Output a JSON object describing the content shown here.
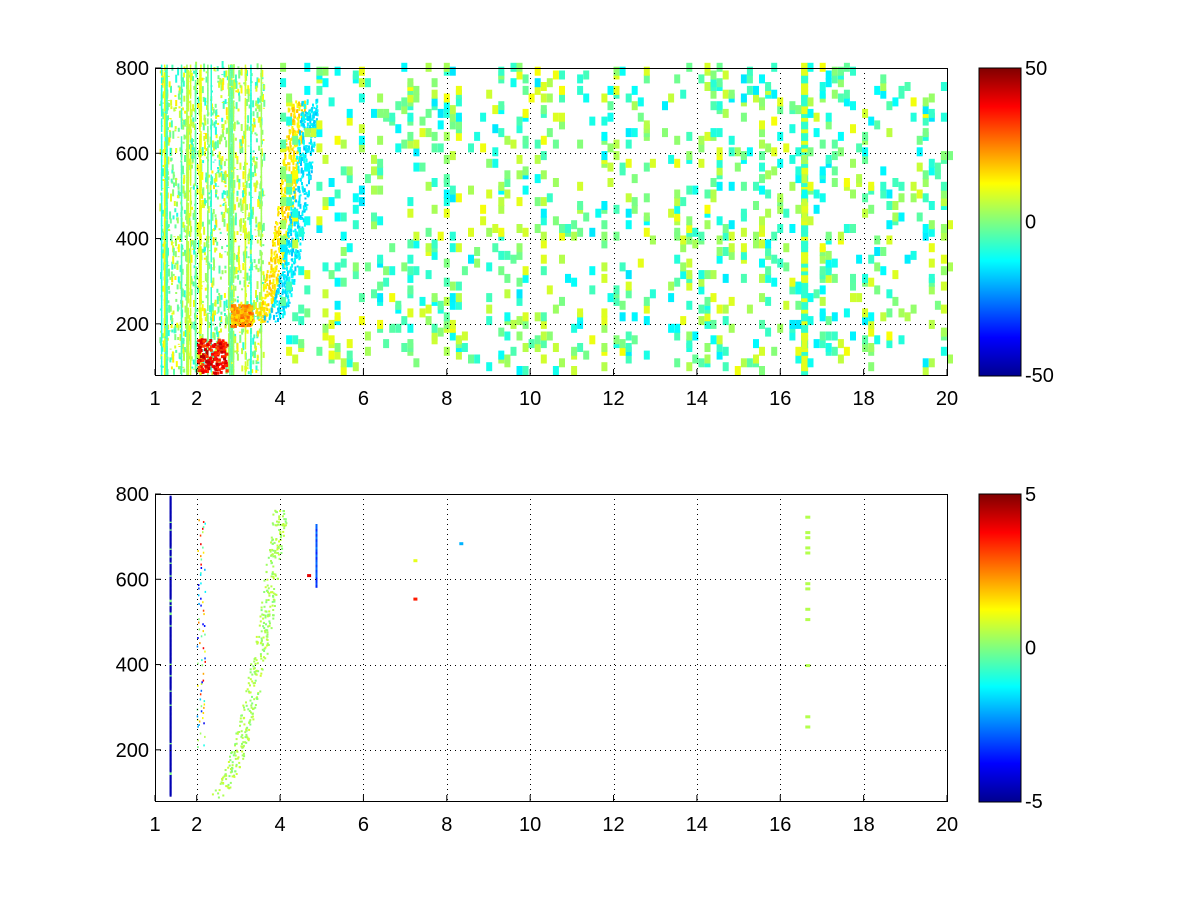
{
  "chart_data": [
    {
      "type": "heatmap",
      "title": "",
      "xlabel": "",
      "ylabel": "",
      "xlim": [
        1,
        20
      ],
      "ylim": [
        80,
        800
      ],
      "grid": true,
      "x_ticks": [
        "1",
        "2",
        "4",
        "6",
        "8",
        "10",
        "12",
        "14",
        "16",
        "18",
        "20"
      ],
      "x_tick_values": [
        1,
        2,
        4,
        6,
        8,
        10,
        12,
        14,
        16,
        18,
        20
      ],
      "y_ticks": [
        "200",
        "400",
        "600",
        "800"
      ],
      "y_tick_values": [
        200,
        400,
        600,
        800
      ],
      "colorbar": {
        "colormap": "jet",
        "range": [
          -50,
          50
        ],
        "ticks": [
          "50",
          "0",
          "-50"
        ],
        "tick_values": [
          50,
          0,
          -50
        ]
      },
      "features": [
        {
          "kind": "dense_band",
          "x": [
            1.1,
            3.6
          ],
          "y": [
            80,
            800
          ],
          "value_range": [
            -10,
            15
          ]
        },
        {
          "kind": "hot_spot",
          "x": [
            2.0,
            2.7
          ],
          "y": [
            80,
            160
          ],
          "value": 45
        },
        {
          "kind": "hot_spot",
          "x": [
            2.8,
            3.3
          ],
          "y": [
            190,
            240
          ],
          "value": 30
        },
        {
          "kind": "warm_curve",
          "x": [
            3.3,
            4.6
          ],
          "y": [
            200,
            720
          ],
          "value": 15
        },
        {
          "kind": "cool_curve",
          "x": [
            3.3,
            4.9
          ],
          "y": [
            200,
            720
          ],
          "value": -15
        },
        {
          "kind": "cool_column",
          "x": 16.6,
          "y": [
            80,
            800
          ],
          "value": -8
        },
        {
          "kind": "sparse_noise",
          "x": [
            4.0,
            20
          ],
          "y": [
            80,
            800
          ],
          "value_range": [
            -15,
            12
          ]
        }
      ]
    },
    {
      "type": "heatmap",
      "title": "",
      "xlabel": "",
      "ylabel": "",
      "xlim": [
        1,
        20
      ],
      "ylim": [
        80,
        800
      ],
      "grid": true,
      "x_ticks": [
        "1",
        "2",
        "4",
        "6",
        "8",
        "10",
        "12",
        "14",
        "16",
        "18",
        "20"
      ],
      "x_tick_values": [
        1,
        2,
        4,
        6,
        8,
        10,
        12,
        14,
        16,
        18,
        20
      ],
      "y_ticks": [
        "200",
        "400",
        "600",
        "800"
      ],
      "y_tick_values": [
        200,
        400,
        600,
        800
      ],
      "colorbar": {
        "colormap": "jet",
        "range": [
          -5,
          5
        ],
        "ticks": [
          "5",
          "0",
          "-5"
        ],
        "tick_values": [
          5,
          0,
          -5
        ]
      },
      "features": [
        {
          "kind": "blue_line",
          "x": 1.35,
          "y": [
            90,
            790
          ],
          "value": -4.5
        },
        {
          "kind": "speckle_line",
          "x": 2.1,
          "y": [
            200,
            740
          ],
          "value_range": [
            -4,
            4
          ]
        },
        {
          "kind": "green_curve",
          "x": [
            2.0,
            4.2
          ],
          "y": [
            85,
            760
          ],
          "value": 0.4
        },
        {
          "kind": "spot",
          "x": 4.85,
          "y": [
            580,
            720
          ],
          "value": -3
        },
        {
          "kind": "spot",
          "x": 4.65,
          "y": 605,
          "value": 4
        },
        {
          "kind": "spot",
          "x": 7.2,
          "y": 550,
          "value": 3.5
        },
        {
          "kind": "spot",
          "x": 7.2,
          "y": 640,
          "value": 1
        },
        {
          "kind": "spot",
          "x": 8.3,
          "y": 680,
          "value": -2
        },
        {
          "kind": "column_dots",
          "x": 16.65,
          "y": [
            250,
            775
          ],
          "value": 0.5
        }
      ]
    }
  ]
}
